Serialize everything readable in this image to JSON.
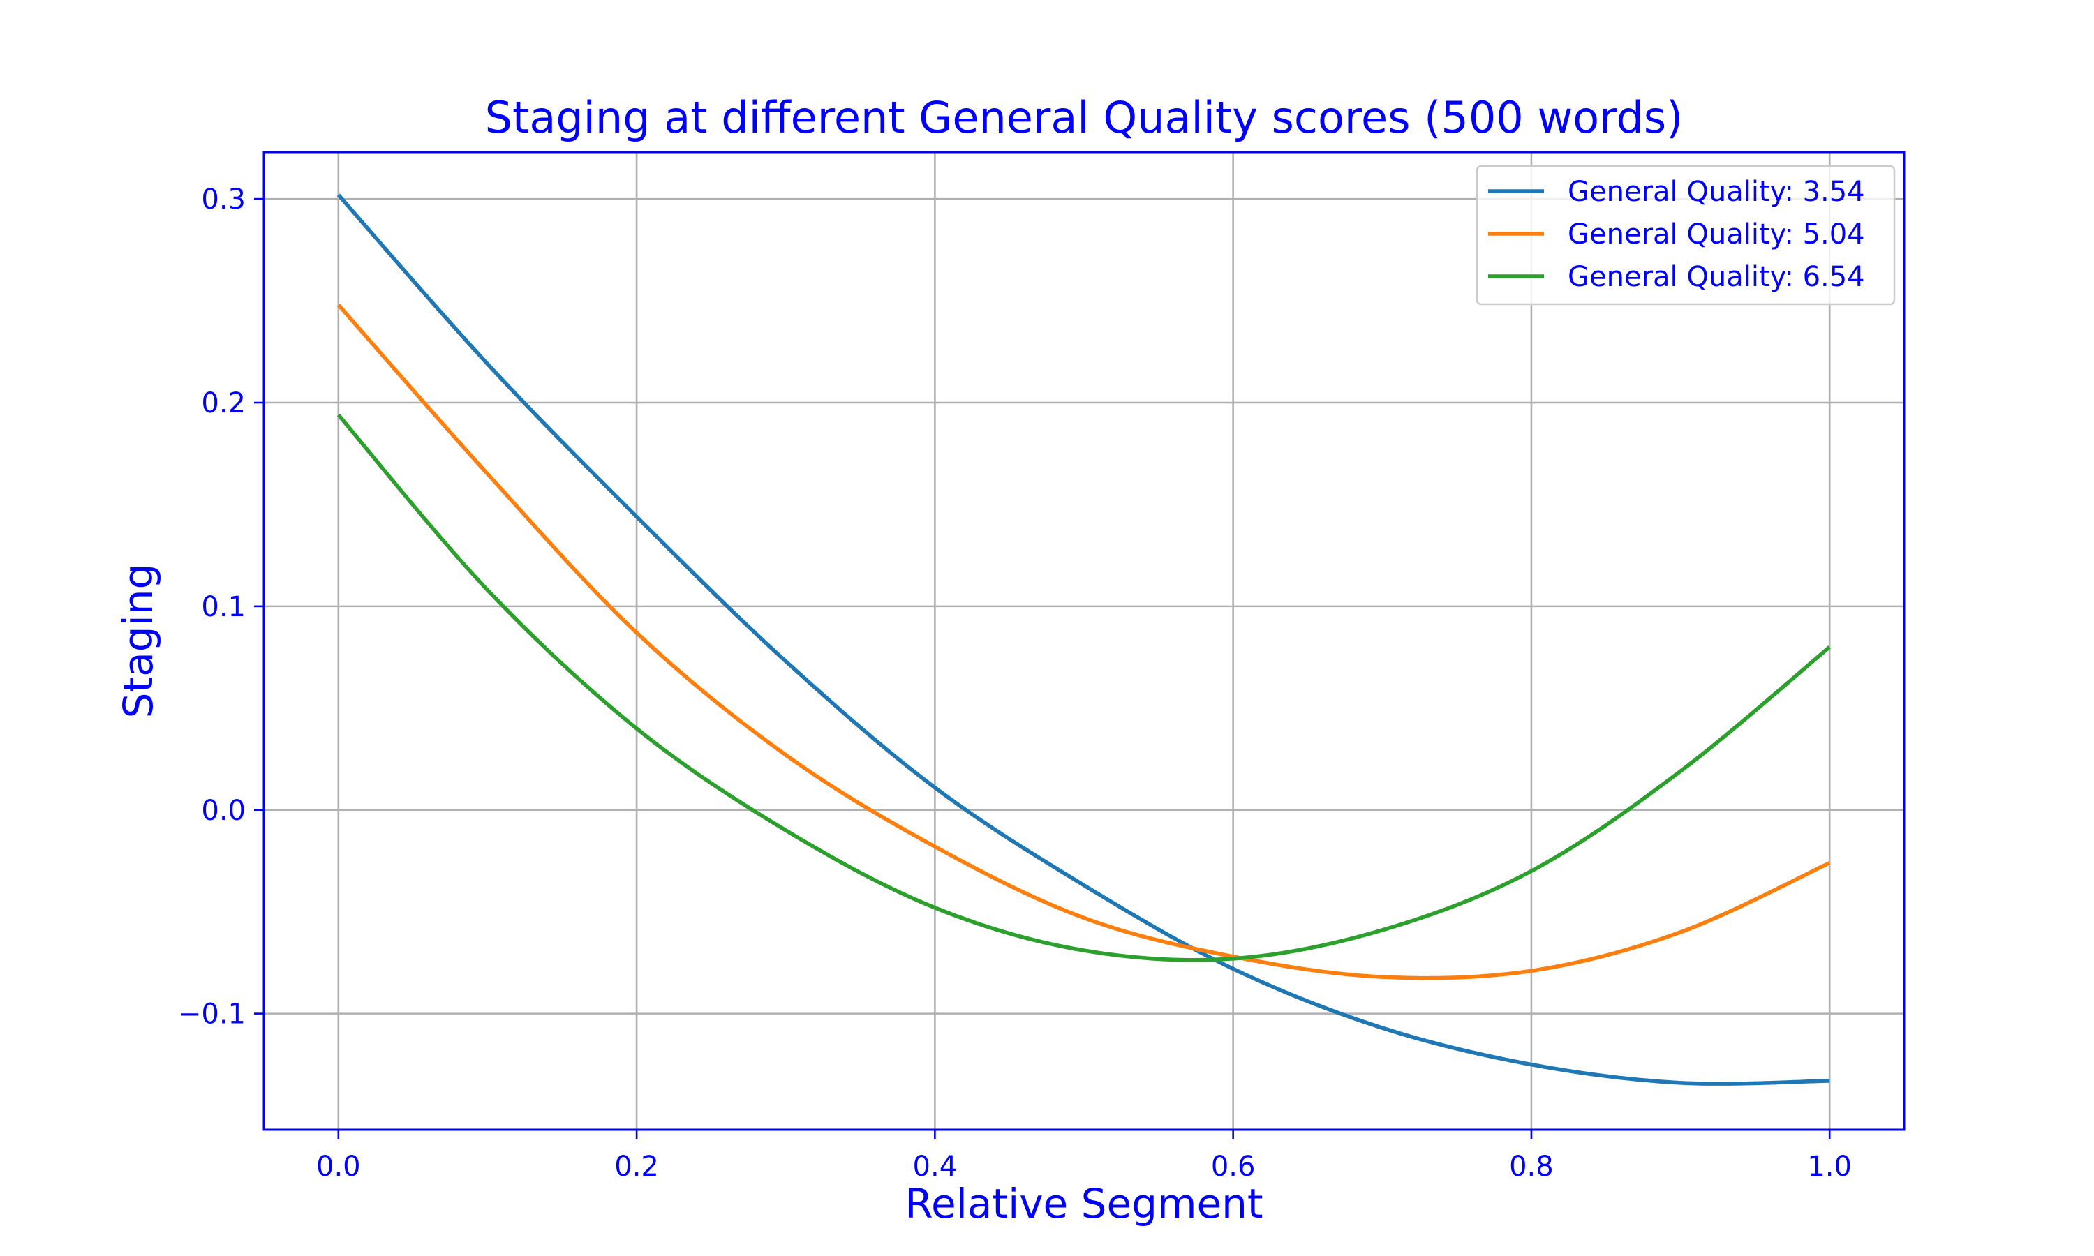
{
  "chart_data": {
    "type": "line",
    "title": "Staging at different General Quality scores (500 words)",
    "xlabel": "Relative Segment",
    "ylabel": "Staging",
    "xlim": [
      -0.05,
      1.05
    ],
    "ylim": [
      -0.157,
      0.323
    ],
    "xticks": [
      0.0,
      0.2,
      0.4,
      0.6,
      0.8,
      1.0
    ],
    "xtick_labels": [
      "0.0",
      "0.2",
      "0.4",
      "0.6",
      "0.8",
      "1.0"
    ],
    "yticks": [
      -0.1,
      0.0,
      0.1,
      0.2,
      0.3
    ],
    "ytick_labels": [
      "−0.1",
      "0.0",
      "0.1",
      "0.2",
      "0.3"
    ],
    "grid": true,
    "legend_position": "top-right",
    "text_color": "#0000ff",
    "series": [
      {
        "name": "General Quality: 3.54",
        "color": "#1f77b4",
        "x": [
          0.0,
          0.1,
          0.2,
          0.3,
          0.4,
          0.5,
          0.6,
          0.7,
          0.8,
          0.9,
          1.0
        ],
        "y": [
          0.302,
          0.219,
          0.144,
          0.073,
          0.011,
          -0.037,
          -0.078,
          -0.107,
          -0.125,
          -0.134,
          -0.133
        ]
      },
      {
        "name": "General Quality: 5.04",
        "color": "#ff7f0e",
        "x": [
          0.0,
          0.1,
          0.2,
          0.3,
          0.4,
          0.5,
          0.6,
          0.7,
          0.8,
          0.9,
          1.0
        ],
        "y": [
          0.248,
          0.165,
          0.087,
          0.027,
          -0.018,
          -0.053,
          -0.072,
          -0.082,
          -0.079,
          -0.06,
          -0.026
        ]
      },
      {
        "name": "General Quality: 6.54",
        "color": "#2ca02c",
        "x": [
          0.0,
          0.1,
          0.2,
          0.3,
          0.4,
          0.5,
          0.6,
          0.7,
          0.8,
          0.9,
          1.0
        ],
        "y": [
          0.194,
          0.108,
          0.04,
          -0.01,
          -0.048,
          -0.069,
          -0.073,
          -0.059,
          -0.03,
          0.019,
          0.08
        ]
      }
    ]
  }
}
